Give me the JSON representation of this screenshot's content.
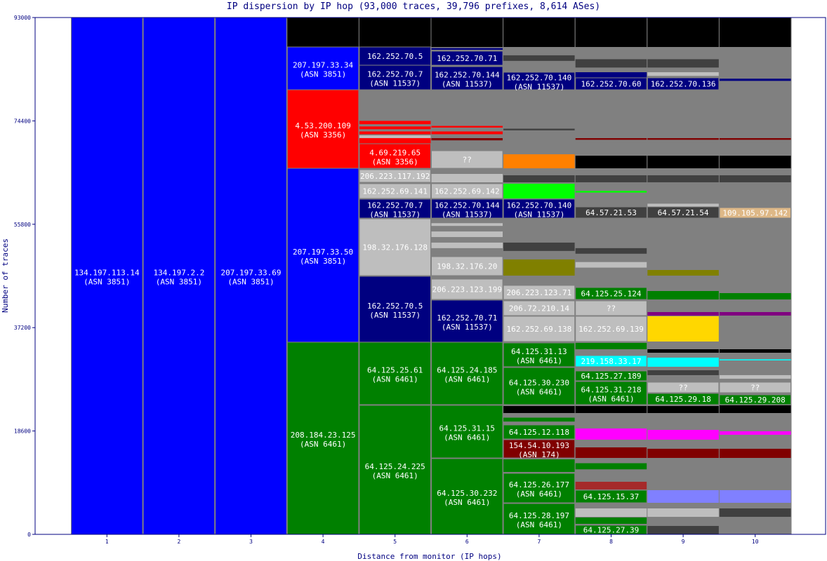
{
  "chart_data": {
    "type": "stacked-bar",
    "title": "IP dispersion by IP hop (93,000 traces, 39,796 prefixes, 8,614 ASes)",
    "xlabel": "Distance from monitor (IP hops)",
    "ylabel": "Number of traces",
    "ylim": [
      0,
      93000
    ],
    "yticks": [
      0,
      18600,
      37200,
      55800,
      74400,
      93000
    ],
    "categories": [
      "1",
      "2",
      "3",
      "4",
      "5",
      "6",
      "7",
      "8",
      "9",
      "10"
    ],
    "colors": {
      "blue": "#0000ff",
      "navy": "#000080",
      "red": "#ff0000",
      "green": "#008000",
      "black": "#000000",
      "gray": "#808080",
      "lightgray": "#bebebe",
      "darkgray": "#404040",
      "orange": "#ff8000",
      "lime": "#00ff00",
      "olive": "#808000",
      "cyan": "#00ffff",
      "magenta": "#ff00ff",
      "maroon": "#800000",
      "brown": "#a52a2a",
      "lavender": "#8080ff",
      "yellow": "#ffd700",
      "purple": "#800080",
      "tan": "#deb887"
    },
    "hops": [
      {
        "hop": 1,
        "segments": [
          [
            0,
            93000,
            "blue",
            "134.197.113.14",
            "(ASN 3851)"
          ]
        ]
      },
      {
        "hop": 2,
        "segments": [
          [
            0,
            93000,
            "blue",
            "134.197.2.2",
            "(ASN 3851)"
          ]
        ]
      },
      {
        "hop": 3,
        "segments": [
          [
            0,
            93000,
            "blue",
            "207.197.33.69",
            "(ASN 3851)"
          ]
        ]
      },
      {
        "hop": 4,
        "segments": [
          [
            87700,
            93000,
            "black"
          ],
          [
            80000,
            87700,
            "blue",
            "207.197.33.34",
            "(ASN 3851)"
          ],
          [
            65870,
            80000,
            "red",
            "4.53.200.109",
            "(ASN 3356)"
          ],
          [
            34580,
            65870,
            "blue",
            "207.197.33.50",
            "(ASN 3851)"
          ],
          [
            0,
            34580,
            "green",
            "208.184.23.125",
            "(ASN 6461)"
          ]
        ]
      },
      {
        "hop": 5,
        "segments": [
          [
            87700,
            93000,
            "black"
          ],
          [
            84420,
            87700,
            "navy",
            "162.252.70.5"
          ],
          [
            80000,
            84420,
            "navy",
            "162.252.70.7",
            "(ASN 11537)"
          ],
          [
            73800,
            74400,
            "red"
          ],
          [
            72900,
            73400,
            "red"
          ],
          [
            72000,
            72500,
            "red"
          ],
          [
            71300,
            71800,
            "lightgray"
          ],
          [
            70290,
            71300,
            "red"
          ],
          [
            65870,
            70290,
            "red",
            "4.69.219.65",
            "(ASN 3356)"
          ],
          [
            63350,
            65620,
            "lightgray",
            "206.223.117.192"
          ],
          [
            60450,
            63100,
            "lightgray",
            "162.252.69.141"
          ],
          [
            56910,
            60320,
            "navy",
            "162.252.70.7",
            "(ASN 11537)"
          ],
          [
            46560,
            56780,
            "lightgray",
            "198.32.176.128"
          ],
          [
            34580,
            46440,
            "navy",
            "162.252.70.5",
            "(ASN 11537)"
          ],
          [
            23350,
            34580,
            "green",
            "64.125.25.61",
            "(ASN 6461)"
          ],
          [
            0,
            23220,
            "green",
            "64.125.24.225",
            "(ASN 6461)"
          ]
        ]
      },
      {
        "hop": 6,
        "segments": [
          [
            87700,
            93000,
            "black"
          ],
          [
            87200,
            87500,
            "navy"
          ],
          [
            84420,
            86950,
            "navy",
            "162.252.70.71"
          ],
          [
            80000,
            84170,
            "navy",
            "162.252.70.144",
            "(ASN 11537)"
          ],
          [
            73200,
            73500,
            "red"
          ],
          [
            72000,
            72500,
            "red"
          ],
          [
            70900,
            71300,
            "maroon"
          ],
          [
            65870,
            69030,
            "lightgray",
            "??"
          ],
          [
            63350,
            64860,
            "lightgray"
          ],
          [
            60450,
            63100,
            "lightgray",
            "162.252.69.142"
          ],
          [
            56910,
            60320,
            "navy",
            "162.252.70.144",
            "(ASN 11537)"
          ],
          [
            55500,
            56000,
            "lightgray"
          ],
          [
            53500,
            54500,
            "lightgray"
          ],
          [
            51500,
            52500,
            "lightgray"
          ],
          [
            46560,
            49970,
            "lightgray",
            "198.32.176.20"
          ],
          [
            42270,
            45930,
            "lightgray",
            "206.223.123.199"
          ],
          [
            34580,
            42150,
            "navy",
            "162.252.70.71",
            "(ASN 11537)"
          ],
          [
            23350,
            34580,
            "green",
            "64.125.24.185",
            "(ASN 6461)"
          ],
          [
            13750,
            23220,
            "green",
            "64.125.31.15",
            "(ASN 6461)"
          ],
          [
            0,
            13630,
            "green",
            "64.125.30.232",
            "(ASN 6461)"
          ]
        ]
      },
      {
        "hop": 7,
        "segments": [
          [
            87700,
            93000,
            "black"
          ],
          [
            85200,
            86200,
            "darkgray"
          ],
          [
            80000,
            83160,
            "navy",
            "162.252.70.140",
            "(ASN 11537)"
          ],
          [
            72700,
            73000,
            "darkgray"
          ],
          [
            65870,
            68390,
            "orange"
          ],
          [
            63350,
            64610,
            "darkgray"
          ],
          [
            60450,
            63100,
            "lime"
          ],
          [
            56910,
            60320,
            "navy",
            "162.252.70.140",
            "(ASN 11537)"
          ],
          [
            51000,
            52500,
            "darkgray"
          ],
          [
            46560,
            49470,
            "olive"
          ],
          [
            42270,
            44800,
            "lightgray",
            "206.223.123.71"
          ],
          [
            39370,
            42020,
            "lightgray",
            "206.72.210.14"
          ],
          [
            34700,
            39250,
            "lightgray",
            "162.252.69.138"
          ],
          [
            30160,
            34450,
            "green",
            "64.125.31.13",
            "(ASN 6461)"
          ],
          [
            23350,
            30030,
            "green",
            "64.125.30.230",
            "(ASN 6461)"
          ],
          [
            21830,
            23090,
            "black"
          ],
          [
            20300,
            21000,
            "green"
          ],
          [
            17160,
            19690,
            "green",
            "64.125.12.118"
          ],
          [
            13750,
            17040,
            "maroon",
            "154.54.10.193",
            "(ASN 174)"
          ],
          [
            11230,
            13500,
            "green"
          ],
          [
            5680,
            10980,
            "green",
            "64.125.26.177",
            "(ASN 6461)"
          ],
          [
            0,
            5550,
            "green",
            "64.125.28.197",
            "(ASN 6461)"
          ]
        ]
      },
      {
        "hop": 8,
        "segments": [
          [
            87700,
            93000,
            "black"
          ],
          [
            84000,
            85500,
            "darkgray"
          ],
          [
            82150,
            83160,
            "navy"
          ],
          [
            80000,
            82150,
            "navy",
            "162.252.70.60"
          ],
          [
            71000,
            71300,
            "maroon"
          ],
          [
            65870,
            68140,
            "black"
          ],
          [
            63350,
            64610,
            "darkgray"
          ],
          [
            61500,
            61800,
            "lime"
          ],
          [
            56910,
            58930,
            "darkgray",
            "64.57.21.53"
          ],
          [
            50500,
            51500,
            "darkgray"
          ],
          [
            48000,
            49000,
            "lightgray"
          ],
          [
            42270,
            44420,
            "green",
            "64.125.25.124"
          ],
          [
            39370,
            42020,
            "lightgray",
            "??"
          ],
          [
            34700,
            39250,
            "lightgray",
            "162.252.69.139"
          ],
          [
            33310,
            34450,
            "green"
          ],
          [
            30160,
            32180,
            "cyan",
            "219.158.33.17"
          ],
          [
            27640,
            29400,
            "green",
            "64.125.27.189"
          ],
          [
            23350,
            27510,
            "green",
            "64.125.31.218",
            "(ASN 6461)"
          ],
          [
            21830,
            23090,
            "black"
          ],
          [
            17040,
            19050,
            "magenta"
          ],
          [
            13750,
            15650,
            "maroon"
          ],
          [
            11700,
            12800,
            "green"
          ],
          [
            8080,
            9460,
            "brown"
          ],
          [
            5680,
            7950,
            "green",
            "64.125.15.37"
          ],
          [
            3150,
            4670,
            "lightgray"
          ],
          [
            1890,
            3030,
            "green"
          ],
          [
            0,
            1640,
            "green",
            "64.125.27.39"
          ]
        ]
      },
      {
        "hop": 9,
        "segments": [
          [
            87700,
            93000,
            "black"
          ],
          [
            84000,
            85500,
            "darkgray"
          ],
          [
            82500,
            83160,
            "lightgray"
          ],
          [
            80000,
            82150,
            "navy",
            "162.252.70.136"
          ],
          [
            71000,
            71300,
            "maroon"
          ],
          [
            65870,
            68140,
            "black"
          ],
          [
            63350,
            64610,
            "darkgray"
          ],
          [
            58930,
            59500,
            "lightgray"
          ],
          [
            56910,
            58930,
            "darkgray",
            "64.57.21.54"
          ],
          [
            46560,
            47570,
            "olive"
          ],
          [
            42270,
            43790,
            "green"
          ],
          [
            39370,
            40000,
            "purple"
          ],
          [
            34700,
            39250,
            "yellow"
          ],
          [
            32680,
            33310,
            "black"
          ],
          [
            30160,
            31800,
            "cyan"
          ],
          [
            28650,
            29530,
            "darkgray"
          ],
          [
            25490,
            27380,
            "lightgray",
            "??"
          ],
          [
            23350,
            25360,
            "green",
            "64.125.29.18"
          ],
          [
            21830,
            23090,
            "black"
          ],
          [
            17040,
            18800,
            "magenta"
          ],
          [
            13750,
            15400,
            "maroon"
          ],
          [
            5680,
            7950,
            "lavender"
          ],
          [
            3150,
            4670,
            "lightgray"
          ],
          [
            0,
            1510,
            "darkgray"
          ]
        ]
      },
      {
        "hop": 10,
        "segments": [
          [
            87700,
            93000,
            "black"
          ],
          [
            81600,
            82000,
            "navy"
          ],
          [
            71000,
            71300,
            "maroon"
          ],
          [
            65870,
            68140,
            "black"
          ],
          [
            63350,
            64610,
            "darkgray"
          ],
          [
            56910,
            58800,
            "tan",
            "109.105.97.142"
          ],
          [
            42270,
            43410,
            "green"
          ],
          [
            39370,
            40000,
            "purple"
          ],
          [
            32680,
            33310,
            "black"
          ],
          [
            31300,
            31500,
            "cyan"
          ],
          [
            28000,
            28650,
            "lightgray"
          ],
          [
            25490,
            27380,
            "lightgray",
            "??"
          ],
          [
            23350,
            25110,
            "green",
            "64.125.29.208"
          ],
          [
            21830,
            23220,
            "black"
          ],
          [
            17920,
            18550,
            "magenta"
          ],
          [
            13750,
            15400,
            "maroon"
          ],
          [
            5680,
            7950,
            "lavender"
          ],
          [
            3150,
            4670,
            "darkgray"
          ]
        ]
      }
    ]
  }
}
